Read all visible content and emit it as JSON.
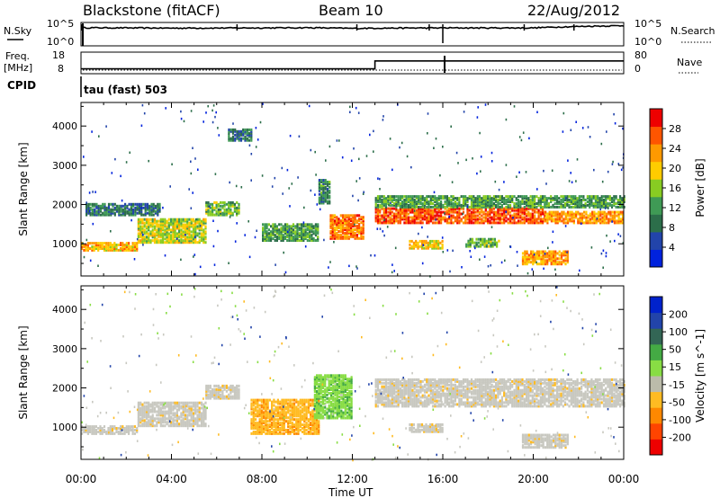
{
  "header": {
    "station": "Blackstone (fitACF)",
    "beam": "Beam 10",
    "date": "22/Aug/2012"
  },
  "top_panels": {
    "nsky_label": "N.Sky",
    "nsky_ticks": [
      "10^5",
      "10^0"
    ],
    "nsearch_label": "N.Search",
    "nsearch_ticks": [
      "10^5",
      "10^0"
    ],
    "freq_label": "Freq.",
    "freq_unit": "[MHz]",
    "freq_ticks": [
      "18",
      "8"
    ],
    "nave_label": "Nave",
    "nave_ticks": [
      "80",
      "0"
    ],
    "cpid_label": "CPID",
    "cpid_value": "tau (fast) 503"
  },
  "colors": {
    "power_scale": [
      "#0022dd",
      "#2244aa",
      "#2c6e4a",
      "#3f9a55",
      "#88cc22",
      "#ffcc00",
      "#ff9900",
      "#ff5500",
      "#ee0000"
    ],
    "velocity_scale": [
      "#0022cc",
      "#2244aa",
      "#336655",
      "#44aa44",
      "#88dd44",
      "#bbbbaa",
      "#ffbb22",
      "#ff8800",
      "#ff4400",
      "#ee0000"
    ],
    "ground_scatter": "#c8c8c0"
  },
  "chart_data": [
    {
      "type": "line",
      "title": "N.Sky / N.Search",
      "x": [
        "00:00",
        "04:00",
        "08:00",
        "12:00",
        "16:00",
        "20:00",
        "00:00"
      ],
      "y_scale": "log",
      "ylim": [
        1,
        100000
      ],
      "series": [
        {
          "name": "N.Sky",
          "x": [
            0,
            4,
            8,
            10,
            12,
            13,
            16,
            20,
            24
          ],
          "values": [
            10000,
            8000,
            9000,
            10000,
            7000,
            8000,
            9000,
            9000,
            30000
          ]
        }
      ]
    },
    {
      "type": "line",
      "title": "Freq. / Nave",
      "ylim": [
        8,
        18
      ],
      "series": [
        {
          "name": "Freq. [MHz]",
          "x": [
            0,
            13,
            13,
            24
          ],
          "values": [
            10,
            10,
            14,
            14
          ]
        },
        {
          "name": "Nave",
          "x": [
            0,
            24
          ],
          "values": [
            18,
            18
          ]
        }
      ]
    },
    {
      "type": "heatmap",
      "title": "Power [dB]",
      "xlabel": "Time UT",
      "ylabel": "Slant Range [km]",
      "xticks": [
        "00:00",
        "04:00",
        "08:00",
        "12:00",
        "16:00",
        "20:00",
        "00:00"
      ],
      "xlim": [
        0,
        24
      ],
      "yticks": [
        "1000",
        "2000",
        "3000",
        "4000"
      ],
      "ylim": [
        180,
        4600
      ],
      "colorbar_ticks": [
        "4",
        "8",
        "12",
        "16",
        "20",
        "24",
        "28"
      ],
      "colorbar_label": "Power [dB]",
      "colorbar_range": [
        0,
        32
      ],
      "bands": [
        {
          "t0": 0.0,
          "t1": 2.5,
          "r0": 800,
          "r1": 1000,
          "level": 22
        },
        {
          "t0": 2.5,
          "t1": 5.5,
          "r0": 1000,
          "r1": 1600,
          "level": 18
        },
        {
          "t0": 5.5,
          "t1": 7.0,
          "r0": 1700,
          "r1": 2050,
          "level": 14
        },
        {
          "t0": 0.2,
          "t1": 3.5,
          "r0": 1700,
          "r1": 2000,
          "level": 8
        },
        {
          "t0": 8.0,
          "t1": 10.5,
          "r0": 1050,
          "r1": 1500,
          "level": 12
        },
        {
          "t0": 10.5,
          "t1": 11.0,
          "r0": 2000,
          "r1": 2600,
          "level": 10
        },
        {
          "t0": 11.0,
          "t1": 12.5,
          "r0": 1100,
          "r1": 1700,
          "level": 26
        },
        {
          "t0": 13.0,
          "t1": 20.5,
          "r0": 1500,
          "r1": 1900,
          "level": 28
        },
        {
          "t0": 13.0,
          "t1": 24.0,
          "r0": 1900,
          "r1": 2200,
          "level": 12
        },
        {
          "t0": 20.5,
          "t1": 24.0,
          "r0": 1500,
          "r1": 1800,
          "level": 24
        },
        {
          "t0": 14.5,
          "t1": 16.0,
          "r0": 850,
          "r1": 1050,
          "level": 20
        },
        {
          "t0": 17.0,
          "t1": 18.5,
          "r0": 900,
          "r1": 1100,
          "level": 14
        },
        {
          "t0": 19.5,
          "t1": 21.5,
          "r0": 450,
          "r1": 800,
          "level": 24
        },
        {
          "t0": 6.5,
          "t1": 7.5,
          "r0": 3600,
          "r1": 3900,
          "level": 8
        }
      ]
    },
    {
      "type": "heatmap",
      "title": "Velocity [m s^-1]",
      "xlabel": "Time UT",
      "ylabel": "Slant Range [km]",
      "xticks": [
        "00:00",
        "04:00",
        "08:00",
        "12:00",
        "16:00",
        "20:00",
        "00:00"
      ],
      "xlim": [
        0,
        24
      ],
      "yticks": [
        "1000",
        "2000",
        "3000",
        "4000"
      ],
      "ylim": [
        180,
        4600
      ],
      "colorbar_ticks": [
        "200",
        "100",
        "50",
        "15",
        "-15",
        "-50",
        "-100",
        "-200"
      ],
      "colorbar_label": "Velocity [m s^-1]",
      "colorbar_range": [
        -250,
        250
      ],
      "bands": [
        {
          "t0": 0.0,
          "t1": 2.5,
          "r0": 800,
          "r1": 1000,
          "value": 0
        },
        {
          "t0": 2.5,
          "t1": 5.5,
          "r0": 1000,
          "r1": 1600,
          "value": 0
        },
        {
          "t0": 5.5,
          "t1": 7.0,
          "r0": 1700,
          "r1": 2050,
          "value": 0
        },
        {
          "t0": 7.5,
          "t1": 10.5,
          "r0": 800,
          "r1": 1700,
          "value": -60
        },
        {
          "t0": 10.3,
          "t1": 12.0,
          "r0": 1200,
          "r1": 2300,
          "value": 40
        },
        {
          "t0": 13.0,
          "t1": 24.0,
          "r0": 1500,
          "r1": 2200,
          "value": 0
        },
        {
          "t0": 14.5,
          "t1": 16.0,
          "r0": 850,
          "r1": 1050,
          "value": 0
        },
        {
          "t0": 19.5,
          "t1": 21.5,
          "r0": 450,
          "r1": 800,
          "value": 0
        }
      ]
    }
  ]
}
